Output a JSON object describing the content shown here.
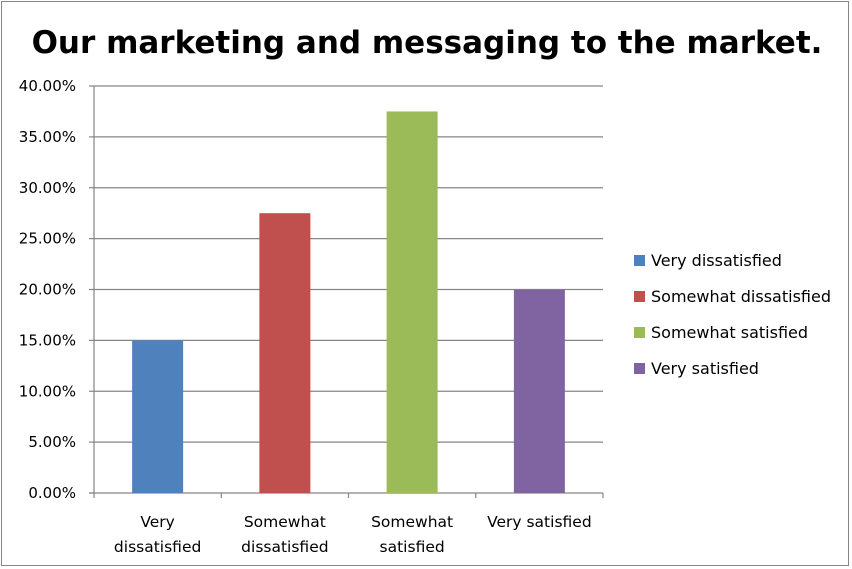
{
  "chart_data": {
    "type": "bar",
    "title": "Our marketing and messaging to the market.",
    "xlabel": "",
    "ylabel": "",
    "categories": [
      [
        "Very",
        "dissatisfied"
      ],
      [
        "Somewhat",
        "dissatisfied"
      ],
      [
        "Somewhat",
        "satisfied"
      ],
      [
        "Very satisfied"
      ]
    ],
    "values": [
      0.15,
      0.275,
      0.375,
      0.2
    ],
    "colors": [
      "#4F81BD",
      "#C0504D",
      "#9BBB59",
      "#8064A2"
    ],
    "ylim": [
      0,
      0.4
    ],
    "yticks": [
      {
        "value": 0.0,
        "label": "0.00%"
      },
      {
        "value": 0.05,
        "label": "5.00%"
      },
      {
        "value": 0.1,
        "label": "10.00%"
      },
      {
        "value": 0.15,
        "label": "15.00%"
      },
      {
        "value": 0.2,
        "label": "20.00%"
      },
      {
        "value": 0.25,
        "label": "25.00%"
      },
      {
        "value": 0.3,
        "label": "30.00%"
      },
      {
        "value": 0.35,
        "label": "35.00%"
      },
      {
        "value": 0.4,
        "label": "40.00%"
      }
    ],
    "grid": true,
    "legend": {
      "placement": "right",
      "entries": [
        "Very dissatisfied",
        "Somewhat dissatisfied",
        "Somewhat satisfied",
        "Very satisfied"
      ]
    }
  }
}
